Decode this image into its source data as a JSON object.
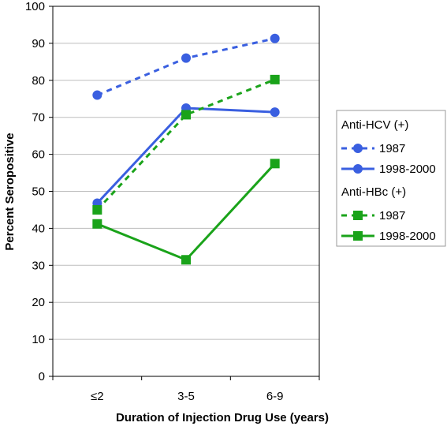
{
  "chart_data": {
    "type": "line",
    "categories": [
      "≤2",
      "3-5",
      "6-9"
    ],
    "xlabel": "Duration of Injection Drug Use (years)",
    "ylabel": "Percent Seropositive",
    "ylim": [
      0,
      100
    ],
    "yticks": [
      0,
      10,
      20,
      30,
      40,
      50,
      60,
      70,
      80,
      90,
      100
    ],
    "grid": true,
    "legend_position": "right",
    "legend_groups": [
      {
        "title": "Anti-HCV (+)",
        "series_indices": [
          0,
          1
        ]
      },
      {
        "title": "Anti-HBc (+)",
        "series_indices": [
          2,
          3
        ]
      }
    ],
    "series": [
      {
        "name": "1987",
        "group": "Anti-HCV (+)",
        "values": [
          76,
          86,
          91.3
        ],
        "color": "#3a5fe0",
        "dashed": true,
        "marker": "circle"
      },
      {
        "name": "1998-2000",
        "group": "Anti-HCV (+)",
        "values": [
          46.8,
          72.5,
          71.4
        ],
        "color": "#3a5fe0",
        "dashed": false,
        "marker": "circle"
      },
      {
        "name": "1987",
        "group": "Anti-HBc (+)",
        "values": [
          45,
          70.7,
          80.2
        ],
        "color": "#1aa31a",
        "dashed": true,
        "marker": "square"
      },
      {
        "name": "1998-2000",
        "group": "Anti-HBc (+)",
        "values": [
          41.2,
          31.5,
          57.5
        ],
        "color": "#1aa31a",
        "dashed": false,
        "marker": "square"
      }
    ]
  }
}
